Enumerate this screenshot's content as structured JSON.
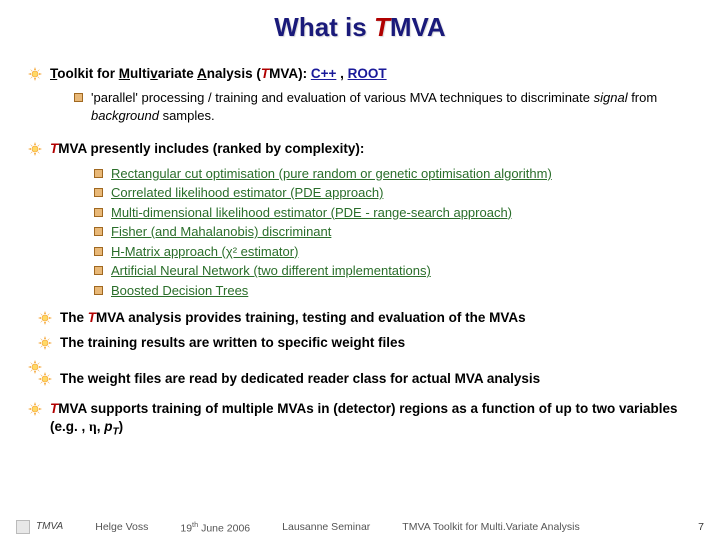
{
  "title_prefix": "What is ",
  "title_tm": "T",
  "title_suffix": "MVA",
  "bullets": {
    "b1_underline": "T",
    "b1_text1": "oolkit for ",
    "b1_u2": "M",
    "b1_text2": "ulti",
    "b1_u3": "v",
    "b1_text3": "ariate ",
    "b1_u4": "A",
    "b1_text4": "nalysis (",
    "b1_tm": "T",
    "b1_text5": "MVA): ",
    "b1_cpp": "C++",
    "b1_comma": " , ",
    "b1_root": "ROOT",
    "b1_sub1": "'parallel' processing / training and evaluation of various MVA techniques to discriminate ",
    "b1_sub1_sig": "signal",
    "b1_sub1_mid": " from ",
    "b1_sub1_bg": "background",
    "b1_sub1_end": " samples.",
    "b2_tm": "T",
    "b2_text": "MVA presently includes (ranked by complexity):",
    "methods": [
      "Rectangular cut optimisation (pure random or genetic optimisation algorithm)",
      "Correlated likelihood estimator (PDE approach)",
      "Multi-dimensional likelihood estimator (PDE - range-search approach)",
      "Fisher (and Mahalanobis) discriminant",
      "H-Matrix approach (χ² estimator)",
      "Artificial Neural Network (two different implementations)",
      "Boosted Decision Trees"
    ],
    "b3_pre": "The ",
    "b3_tm": "T",
    "b3_text": "MVA analysis provides training, testing and evaluation of the MVAs",
    "b4": "The training results are written to specific weight files",
    "b5": "The weight files are read by dedicated reader class for actual MVA analysis",
    "b6_tm": "T",
    "b6_text1": "MVA supports training of multiple MVAs in (detector) regions as a function of up to two variables (e.g. , ",
    "b6_eta": "η",
    "b6_comma": ", ",
    "b6_pt_p": "p",
    "b6_pt_t": "T",
    "b6_close": ")"
  },
  "footer": {
    "author": "Helge Voss",
    "date_pre": "19",
    "date_sup": "th",
    "date_post": " June 2006",
    "venue": "Lausanne Seminar",
    "talk": "TMVA Toolkit for Multi.Variate Analysis",
    "page": "7",
    "tmva_logo": "TMVA"
  },
  "colors": {
    "title": "#1a1a7a",
    "red": "#b00000",
    "link_blue": "#1a1a9a",
    "link_green": "#2a6e2a",
    "sun_outer": "#f4a83a",
    "sun_inner": "#ffd966",
    "square_fill": "#e8b878",
    "square_stroke": "#a06820"
  }
}
